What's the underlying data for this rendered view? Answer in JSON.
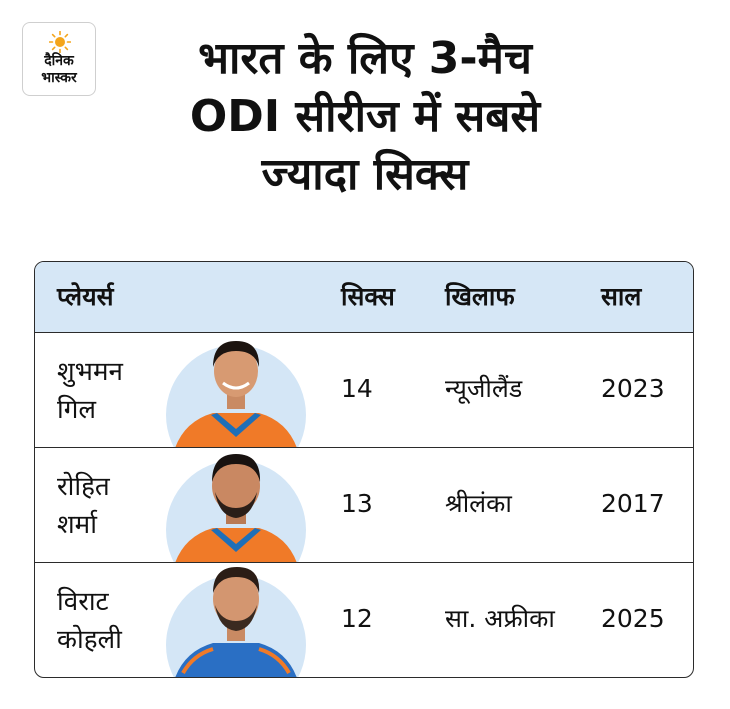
{
  "logo": {
    "line1": "दैनिक",
    "line2": "भास्कर",
    "sun_color": "#f4a51c"
  },
  "title": {
    "line1": "भारत के लिए 3-मैच",
    "line2": "ODI सीरीज में सबसे",
    "line3": "ज्यादा सिक्स"
  },
  "table": {
    "header_bg": "#d6e7f6",
    "headers": {
      "player": "प्लेयर्स",
      "sixes": "सिक्स",
      "against": "खिलाफ",
      "year": "साल"
    },
    "rows": [
      {
        "name_line1": "शुभमन",
        "name_line2": "गिल",
        "sixes": "14",
        "against": "न्यूजीलैंड",
        "year": "2023"
      },
      {
        "name_line1": "रोहित",
        "name_line2": "शर्मा",
        "sixes": "13",
        "against": "श्रीलंका",
        "year": "2017"
      },
      {
        "name_line1": "विराट",
        "name_line2": "कोहली",
        "sixes": "12",
        "against": "सा. अफ्रीका",
        "year": "2025"
      }
    ]
  }
}
